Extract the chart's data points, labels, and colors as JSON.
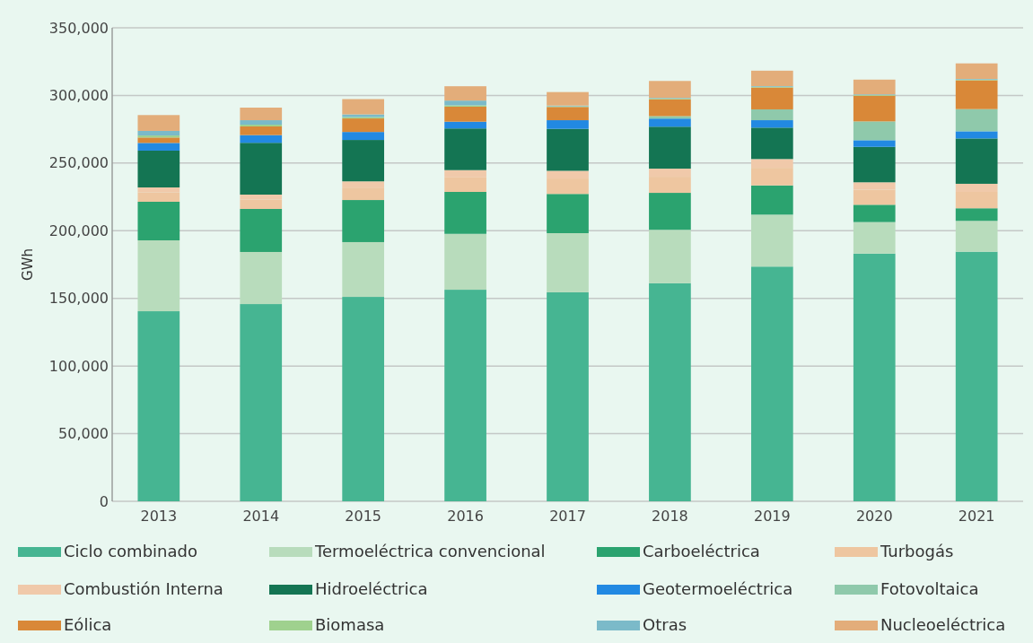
{
  "chart_data": {
    "type": "bar",
    "stacked": true,
    "ylabel": "GWh",
    "categories": [
      "2013",
      "2014",
      "2015",
      "2016",
      "2017",
      "2018",
      "2019",
      "2020",
      "2021"
    ],
    "series": [
      {
        "name": "Ciclo combinado",
        "color": "#46b592",
        "values": [
          140500,
          145800,
          151100,
          156400,
          154500,
          161200,
          173500,
          183100,
          184500
        ]
      },
      {
        "name": "Termoeléctrica convencional",
        "color": "#b8dcbc",
        "values": [
          52400,
          38500,
          40500,
          41300,
          43700,
          39500,
          38400,
          23300,
          22800
        ]
      },
      {
        "name": "Carboeléctrica",
        "color": "#2ba36f",
        "values": [
          28500,
          31800,
          31100,
          31000,
          29000,
          27300,
          21600,
          12800,
          9300
        ]
      },
      {
        "name": "Turbogás",
        "color": "#eec6a0",
        "values": [
          7000,
          7000,
          9200,
          10700,
          11400,
          11900,
          13000,
          11100,
          12100
        ]
      },
      {
        "name": "Combustión Interna",
        "color": "#f0c9aa",
        "values": [
          3600,
          3600,
          4600,
          5400,
          5700,
          6000,
          6500,
          5500,
          6000
        ]
      },
      {
        "name": "Hidroeléctrica",
        "color": "#147553",
        "values": [
          27200,
          38300,
          30600,
          30800,
          31000,
          31000,
          23200,
          26200,
          33500
        ]
      },
      {
        "name": "Geotermoeléctrica",
        "color": "#2289e2",
        "values": [
          5700,
          5700,
          5900,
          5000,
          6400,
          6000,
          5500,
          4900,
          5300
        ]
      },
      {
        "name": "Fotovoltaica",
        "color": "#8fc9ab",
        "values": [
          null,
          null,
          null,
          null,
          null,
          1800,
          8000,
          13900,
          16400
        ]
      },
      {
        "name": "Eólica",
        "color": "#d98838",
        "values": [
          4000,
          6400,
          10000,
          11100,
          9800,
          12500,
          16200,
          19000,
          21300
        ]
      },
      {
        "name": "Biomasa",
        "color": "#9fd18e",
        "values": [
          1500,
          1300,
          1000,
          1000,
          500,
          500,
          500,
          500,
          500
        ]
      },
      {
        "name": "Otras",
        "color": "#7bbac9",
        "values": [
          3400,
          3300,
          2000,
          3500,
          500,
          500,
          500,
          500,
          500
        ]
      },
      {
        "name": "Nucleoeléctrica",
        "color": "#e3ad7a",
        "values": [
          11700,
          9300,
          11300,
          10600,
          10000,
          12500,
          11400,
          10900,
          11500
        ]
      }
    ],
    "ylim": [
      0,
      350000
    ],
    "yticks": [
      {
        "value": 0,
        "label": "0"
      },
      {
        "value": 50000,
        "label": "50,000"
      },
      {
        "value": 100000,
        "label": "100,000"
      },
      {
        "value": 150000,
        "label": "150,000"
      },
      {
        "value": 200000,
        "label": "200,000"
      },
      {
        "value": 250000,
        "label": "250,000"
      },
      {
        "value": 300000,
        "label": "300,000"
      },
      {
        "value": 350000,
        "label": "350,000"
      }
    ],
    "grid": "y",
    "legend": "bottom"
  }
}
